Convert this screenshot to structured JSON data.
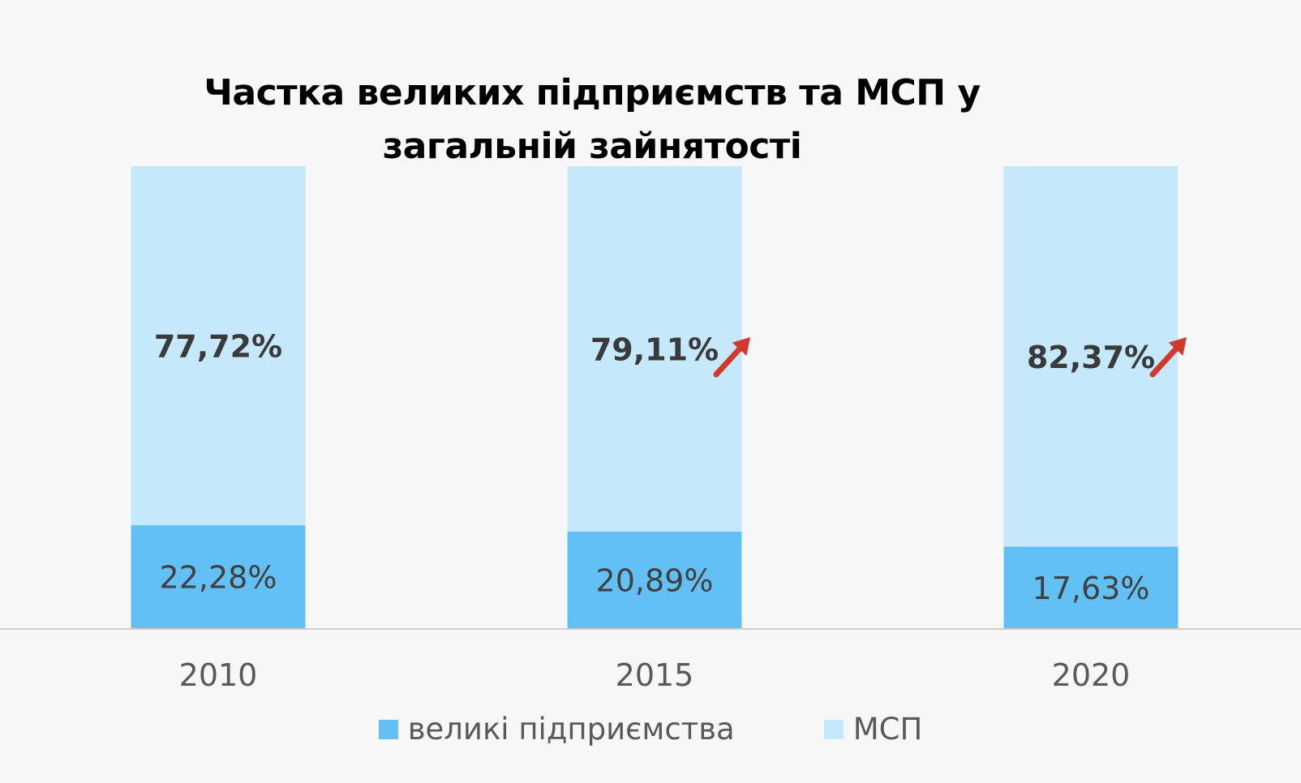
{
  "chart_data": {
    "type": "bar",
    "stacked": true,
    "title": "Частка великих підприємств та МСП у загальній зайнятості",
    "categories": [
      "2010",
      "2015",
      "2020"
    ],
    "series": [
      {
        "name": "великі підприємства",
        "values": [
          22.28,
          20.89,
          17.63
        ],
        "labels": [
          "22,28%",
          "20,89%",
          "17,63%"
        ],
        "color": "#63c0f5"
      },
      {
        "name": "МСП",
        "values": [
          77.72,
          79.11,
          82.37
        ],
        "labels": [
          "77,72%",
          "79,11%",
          "82,37%"
        ],
        "color": "#c6e8fb"
      }
    ],
    "ylim": [
      0,
      100
    ],
    "grid": false,
    "legend_position": "bottom",
    "annotations": [
      {
        "type": "arrow-up",
        "category": "2015",
        "color": "#d0392b"
      },
      {
        "type": "arrow-up",
        "category": "2020",
        "color": "#d0392b"
      }
    ]
  }
}
